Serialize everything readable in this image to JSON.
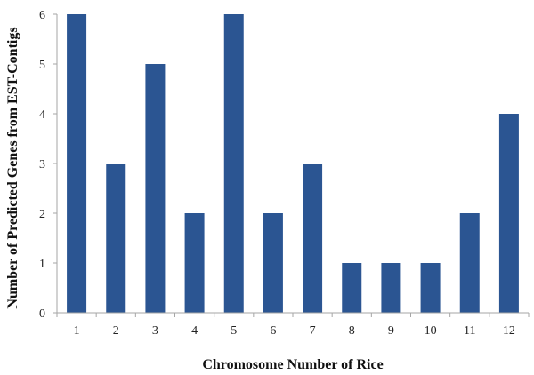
{
  "chart_data": {
    "type": "bar",
    "title": "",
    "xlabel": "Chromosome Number of Rice",
    "ylabel": "Number of Predicted Genes from EST-Contigs",
    "categories": [
      "1",
      "2",
      "3",
      "4",
      "5",
      "6",
      "7",
      "8",
      "9",
      "10",
      "11",
      "12"
    ],
    "values": [
      6,
      3,
      5,
      2,
      6,
      2,
      3,
      1,
      1,
      1,
      2,
      4
    ],
    "ylim": [
      0,
      6
    ],
    "yticks": [
      0,
      1,
      2,
      3,
      4,
      5,
      6
    ],
    "grid": false,
    "legend": "none",
    "bar_color": "#2b5592",
    "axis_color": "#a6a6a6"
  }
}
